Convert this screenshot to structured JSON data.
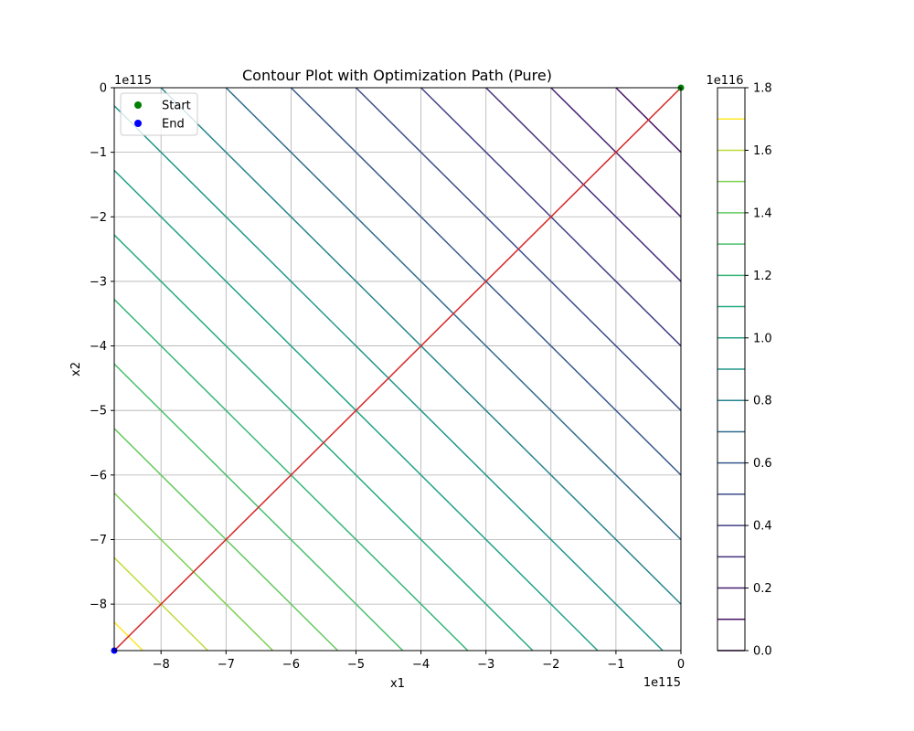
{
  "chart_data": {
    "type": "contour",
    "title": "Contour Plot with Optimization Path (Pure)",
    "xlabel": "x1",
    "ylabel": "x2",
    "x_offset_label": "1e115",
    "y_offset_label": "1e115",
    "colorbar_offset_label": "1e116",
    "xlim": [
      -8.72,
      0
    ],
    "ylim": [
      -8.72,
      0
    ],
    "x_ticks": [
      -8,
      -7,
      -6,
      -5,
      -4,
      -3,
      -2,
      -1,
      0
    ],
    "y_ticks": [
      0,
      -1,
      -2,
      -3,
      -4,
      -5,
      -6,
      -7,
      -8
    ],
    "grid": true,
    "function_note": "f(x1, x2) proportional to -(x1 + x2); contour levels every 0.1 (×1e116)",
    "contour_levels": [
      0.0,
      0.1,
      0.2,
      0.3,
      0.4,
      0.5,
      0.6,
      0.7,
      0.8,
      0.9,
      1.0,
      1.1,
      1.2,
      1.3,
      1.4,
      1.5,
      1.6,
      1.7
    ],
    "colorbar_ticks": [
      0.0,
      0.2,
      0.4,
      0.6,
      0.8,
      1.0,
      1.2,
      1.4,
      1.6,
      1.8
    ],
    "colorbar_range": [
      0.0,
      1.8
    ],
    "path": {
      "color": "#d62728",
      "points": [
        [
          0,
          0
        ],
        [
          -8.72,
          -8.72
        ]
      ]
    },
    "start_point": [
      0,
      0
    ],
    "end_point": [
      -8.72,
      -8.72
    ],
    "legend": {
      "position": "top-left",
      "entries": [
        {
          "label": "Start",
          "color": "#008000"
        },
        {
          "label": "End",
          "color": "#0000ff"
        }
      ]
    }
  }
}
